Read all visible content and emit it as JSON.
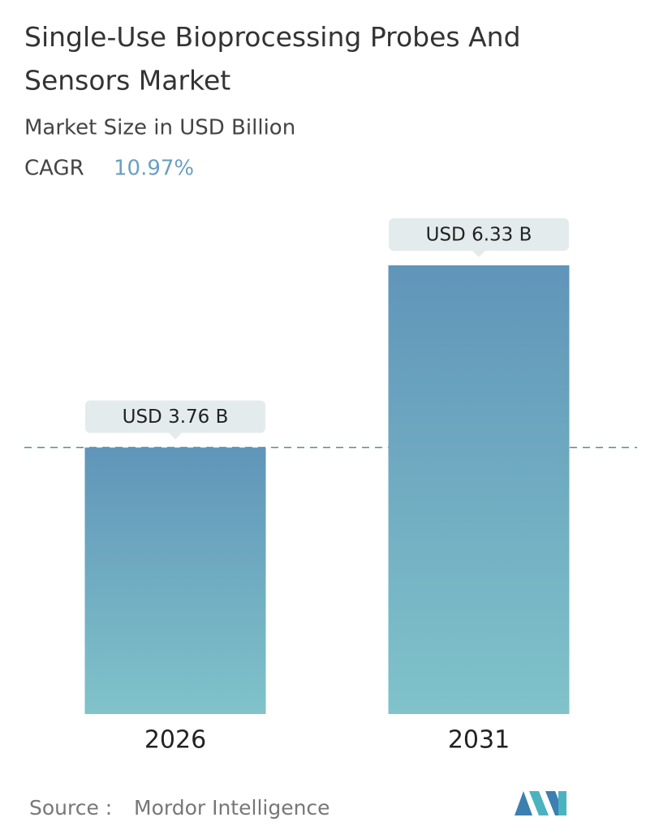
{
  "chart_data": {
    "type": "bar",
    "title": "Single-Use Bioprocessing Probes And Sensors Market",
    "subtitle": "Market Size in USD Billion",
    "cagr_label": "CAGR",
    "cagr_value": "10.97%",
    "categories": [
      "2026",
      "2031"
    ],
    "values": [
      3.76,
      6.33
    ],
    "value_labels": [
      "USD 3.76 B",
      "USD 6.33 B"
    ],
    "source_label": "Source :",
    "source": "Mordor Intelligence"
  }
}
